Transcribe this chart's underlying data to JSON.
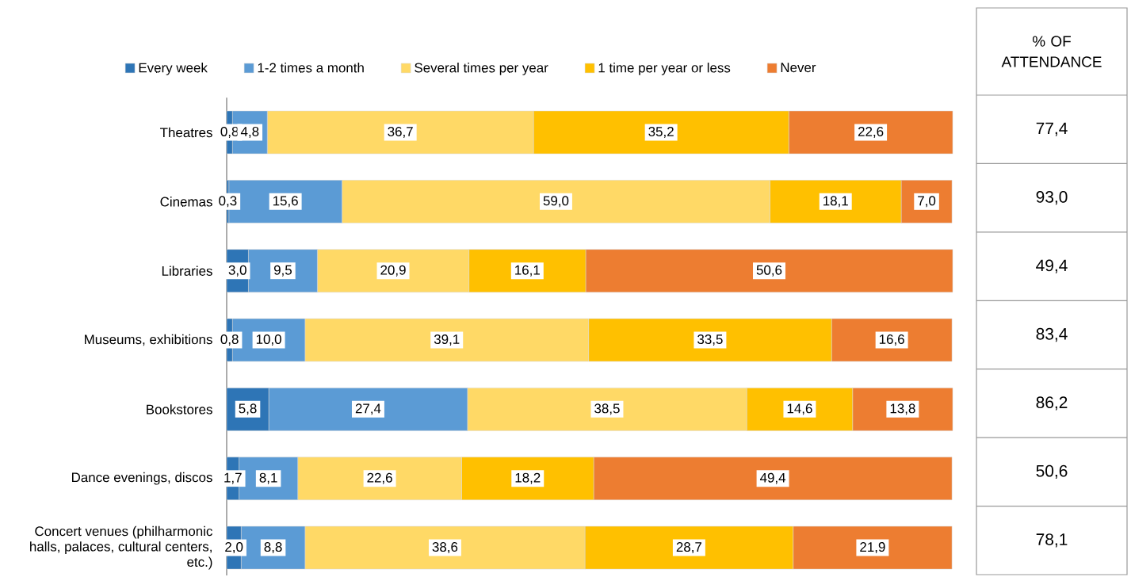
{
  "chart_data": {
    "type": "bar",
    "orientation": "horizontal",
    "stacked": true,
    "categories": [
      "Theatres",
      "Cinemas",
      "Libraries",
      "Museums, exhibitions",
      "Bookstores",
      "Dance evenings, discos",
      "Concert venues (philharmonic halls, palaces, cultural centers, etc.)"
    ],
    "series": [
      {
        "name": "Every week",
        "color": "#2e75b6",
        "values": [
          0.8,
          0.3,
          3.0,
          0.8,
          5.8,
          1.7,
          2.0
        ],
        "value_labels": [
          "0,8",
          "0,3",
          "3,0",
          "0,8",
          "5,8",
          "1,7",
          "2,0"
        ]
      },
      {
        "name": "1-2 times a month",
        "color": "#5b9bd5",
        "values": [
          4.8,
          15.6,
          9.5,
          10.0,
          27.4,
          8.1,
          8.8
        ],
        "value_labels": [
          "4,8",
          "15,6",
          "9,5",
          "10,0",
          "27,4",
          "8,1",
          "8,8"
        ]
      },
      {
        "name": "Several times per year",
        "color": "#ffd966",
        "values": [
          36.7,
          59.0,
          20.9,
          39.1,
          38.5,
          22.6,
          38.6
        ],
        "value_labels": [
          "36,7",
          "59,0",
          "20,9",
          "39,1",
          "38,5",
          "22,6",
          "38,6"
        ]
      },
      {
        "name": "1 time per year or less",
        "color": "#ffc000",
        "values": [
          35.2,
          18.1,
          16.1,
          33.5,
          14.6,
          18.2,
          28.7
        ],
        "value_labels": [
          "35,2",
          "18,1",
          "16,1",
          "33,5",
          "14,6",
          "18,2",
          "28,7"
        ]
      },
      {
        "name": "Never",
        "color": "#ed7d31",
        "values": [
          22.6,
          7.0,
          50.6,
          16.6,
          13.8,
          49.4,
          21.9
        ],
        "value_labels": [
          "22,6",
          "7,0",
          "50,6",
          "16,6",
          "13,8",
          "49,4",
          "21,9"
        ]
      }
    ],
    "legend": "top",
    "tick_labels": "y",
    "annotations": [
      "% OF ATTENDANCE",
      "77,4",
      "93,0",
      "49,4",
      "83,4",
      "86,2",
      "50,6",
      "78,1"
    ]
  }
}
